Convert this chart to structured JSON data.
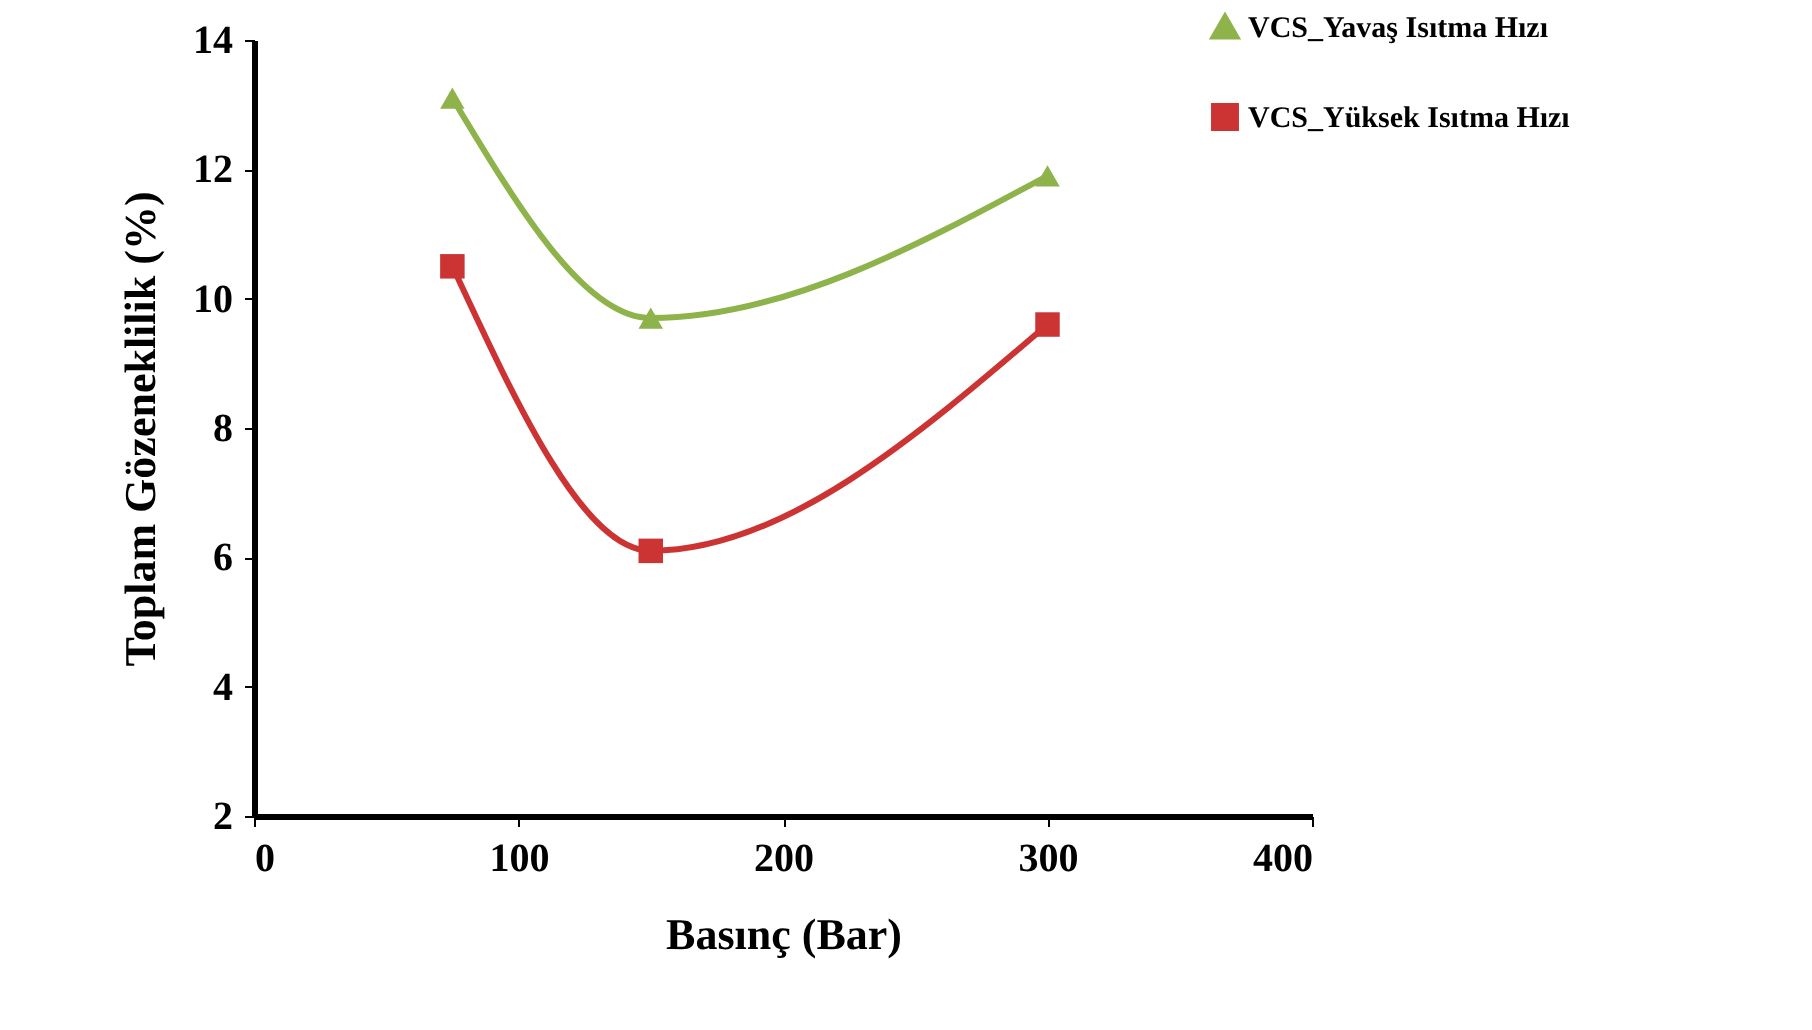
{
  "chart_data": {
    "type": "line",
    "xlabel": "Basınç (Bar)",
    "ylabel": "Toplam Gözeneklilik (%)",
    "x": [
      75,
      150,
      300
    ],
    "series": [
      {
        "name": "VCS_Yavaş Isıtma Hızı",
        "color": "#8db34a",
        "marker": "triangle",
        "values": [
          13.1,
          9.7,
          11.9
        ]
      },
      {
        "name": "VCS_Yüksek Isıtma Hızı",
        "color": "#cc3333",
        "marker": "square",
        "values": [
          10.5,
          6.1,
          9.6
        ]
      }
    ],
    "xlim": [
      0,
      400
    ],
    "xticks": [
      0,
      100,
      200,
      300,
      400
    ],
    "ylim": [
      2,
      14
    ],
    "yticks": [
      2,
      4,
      6,
      8,
      10,
      12,
      14
    ],
    "grid": false,
    "legend": "top right",
    "line_style": "solid"
  }
}
